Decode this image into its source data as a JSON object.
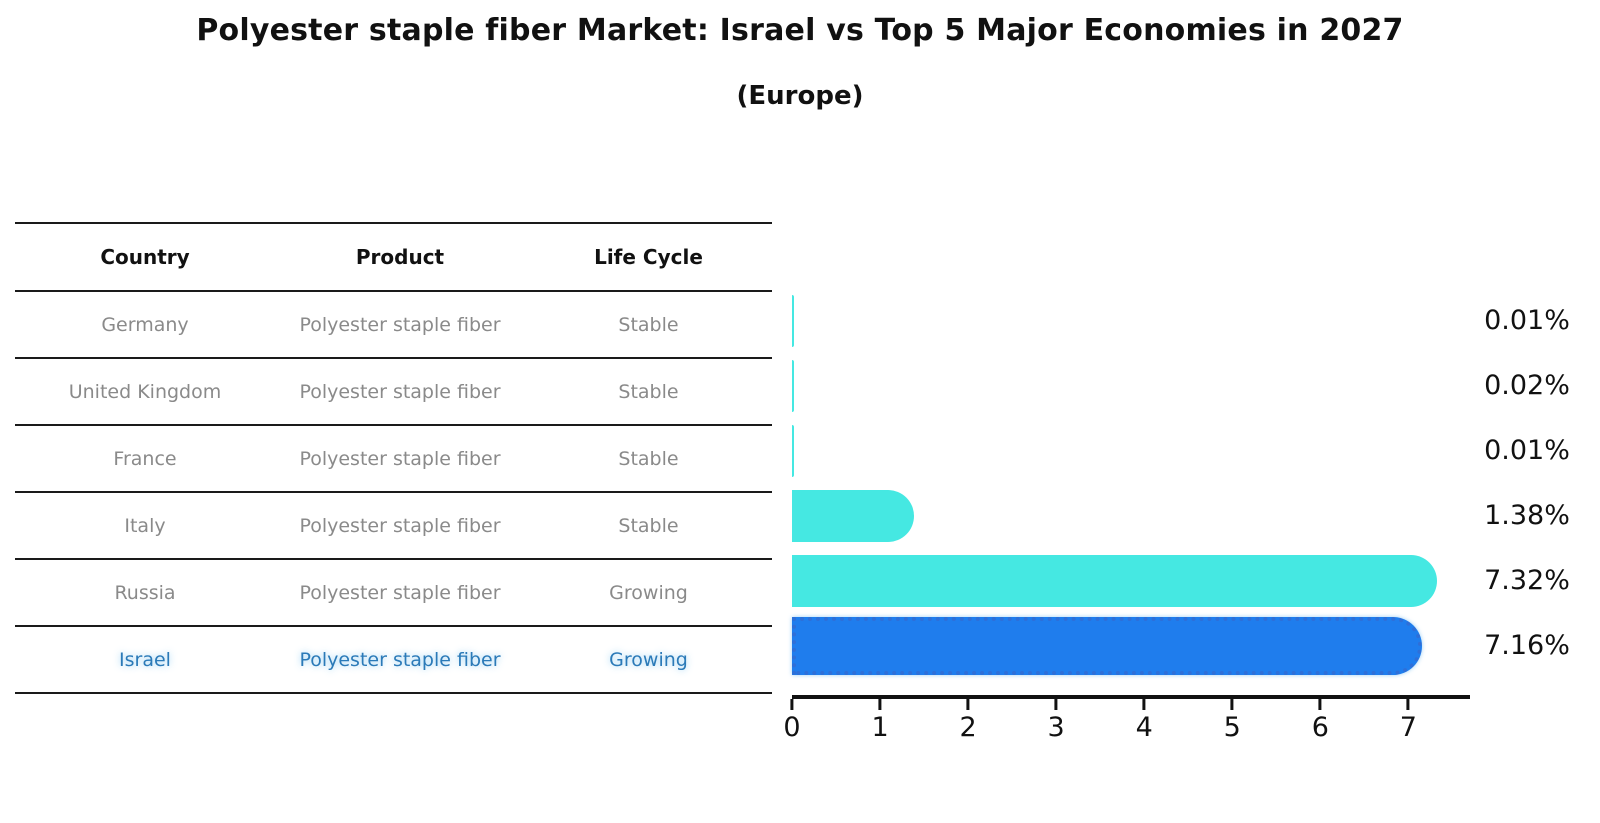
{
  "title": "Polyester staple fiber Market: Israel vs Top 5 Major Economies in 2027",
  "subtitle": "(Europe)",
  "table": {
    "headers": {
      "country": "Country",
      "product": "Product",
      "life_cycle": "Life Cycle"
    },
    "rows": [
      {
        "country": "Germany",
        "product": "Polyester staple fiber",
        "life_cycle": "Stable",
        "highlighted": false
      },
      {
        "country": "United Kingdom",
        "product": "Polyester staple fiber",
        "life_cycle": "Stable",
        "highlighted": false
      },
      {
        "country": "France",
        "product": "Polyester staple fiber",
        "life_cycle": "Stable",
        "highlighted": false
      },
      {
        "country": "Italy",
        "product": "Polyester staple fiber",
        "life_cycle": "Stable",
        "highlighted": false
      },
      {
        "country": "Russia",
        "product": "Polyester staple fiber",
        "life_cycle": "Growing",
        "highlighted": false
      },
      {
        "country": "Israel",
        "product": "Polyester staple fiber",
        "life_cycle": "Growing",
        "highlighted": true
      }
    ]
  },
  "chart_data": {
    "type": "bar",
    "orientation": "horizontal",
    "title": "Polyester staple fiber Market: Israel vs Top 5 Major Economies in 2027 (Europe)",
    "categories": [
      "Germany",
      "United Kingdom",
      "France",
      "Italy",
      "Russia",
      "Israel"
    ],
    "values": [
      0.01,
      0.02,
      0.01,
      1.38,
      7.32,
      7.16
    ],
    "value_labels": [
      "0.01%",
      "0.02%",
      "0.01%",
      "1.38%",
      "7.32%",
      "7.16%"
    ],
    "xlim": [
      0,
      7.7
    ],
    "xticks": [
      0,
      1,
      2,
      3,
      4,
      5,
      6,
      7
    ],
    "grid": false,
    "legend": "none",
    "highlight_index": 5
  },
  "colors": {
    "bar_default": "#45e8e2",
    "bar_highlight": "#1f7ded",
    "bar_highlight_edge": "#2e6fd8",
    "highlight_text": "#2b7ab8",
    "table_text": "#8a8a8a",
    "header_text": "#111111",
    "axis": "#111111"
  }
}
